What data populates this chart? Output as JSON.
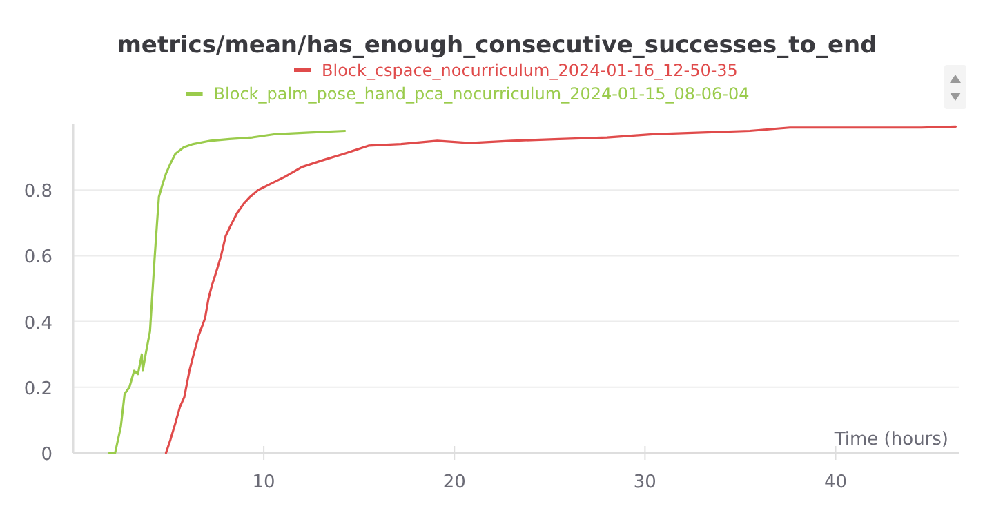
{
  "chart_data": {
    "type": "line",
    "title": "metrics/mean/has_enough_consecutive_successes_to_end",
    "xlabel": "Time (hours)",
    "xlim": [
      0,
      46.5
    ],
    "xticks": [
      10,
      20,
      30,
      40
    ],
    "ylim": [
      0,
      1
    ],
    "yticks": [
      0,
      0.2,
      0.4,
      0.6,
      0.8
    ],
    "grid": "y",
    "legend": "top",
    "line_style": "solid",
    "series": [
      {
        "name": "Block_cspace_nocurriculum_2024-01-16_12-50-35",
        "color": "#e04b4b",
        "x": [
          4.87,
          5.1,
          5.36,
          5.6,
          5.83,
          6.1,
          6.32,
          6.6,
          6.92,
          7.1,
          7.28,
          7.5,
          7.76,
          8.0,
          8.25,
          8.6,
          8.97,
          9.3,
          9.7,
          10.4,
          11.1,
          12.0,
          13.05,
          14.2,
          15.5,
          17.2,
          19.1,
          20.8,
          23,
          25.5,
          28,
          30.4,
          33,
          35.5,
          37.6,
          40,
          42.5,
          44.5,
          46.3
        ],
        "values": [
          0,
          0.04,
          0.09,
          0.14,
          0.17,
          0.25,
          0.3,
          0.36,
          0.41,
          0.47,
          0.51,
          0.55,
          0.6,
          0.66,
          0.69,
          0.73,
          0.76,
          0.78,
          0.8,
          0.82,
          0.84,
          0.87,
          0.89,
          0.91,
          0.935,
          0.94,
          0.95,
          0.943,
          0.95,
          0.955,
          0.96,
          0.97,
          0.975,
          0.98,
          0.99,
          0.99,
          0.99,
          0.99,
          0.993
        ]
      },
      {
        "name": "Block_palm_pose_hand_pca_nocurriculum_2024-01-15_08-06-04",
        "color": "#9acb4c",
        "x": [
          1.9,
          2.2,
          2.5,
          2.7,
          2.95,
          3.2,
          3.4,
          3.6,
          3.65,
          3.8,
          4.03,
          4.15,
          4.27,
          4.4,
          4.5,
          4.7,
          4.87,
          5.1,
          5.36,
          5.8,
          6.3,
          7.2,
          8.2,
          9.4,
          10.6,
          12.4,
          14.26
        ],
        "values": [
          0,
          0,
          0.08,
          0.18,
          0.2,
          0.25,
          0.24,
          0.3,
          0.25,
          0.3,
          0.37,
          0.48,
          0.59,
          0.7,
          0.78,
          0.82,
          0.85,
          0.88,
          0.91,
          0.93,
          0.94,
          0.95,
          0.955,
          0.96,
          0.97,
          0.975,
          0.98
        ]
      }
    ]
  }
}
